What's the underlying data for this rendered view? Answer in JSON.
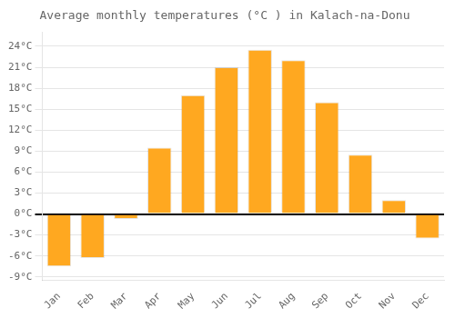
{
  "chart_data": {
    "type": "bar",
    "title": "Average monthly temperatures (°C ) in Kalach-na-Donu",
    "categories": [
      "Jan",
      "Feb",
      "Mar",
      "Apr",
      "May",
      "Jun",
      "Jul",
      "Aug",
      "Sep",
      "Oct",
      "Nov",
      "Dec"
    ],
    "values": [
      -7.5,
      -6.3,
      -0.7,
      9.5,
      17.0,
      21.0,
      23.5,
      22.0,
      16.0,
      8.5,
      2.0,
      -3.5
    ],
    "color": "#FFA820",
    "ylim": [
      -9.5,
      26.0
    ],
    "yticks": [
      {
        "value": -9,
        "label": "-9°C"
      },
      {
        "value": -6,
        "label": "-6°C"
      },
      {
        "value": -3,
        "label": "-3°C"
      },
      {
        "value": 0,
        "label": "0°C"
      },
      {
        "value": 3,
        "label": "3°C"
      },
      {
        "value": 6,
        "label": "6°C"
      },
      {
        "value": 9,
        "label": "9°C"
      },
      {
        "value": 12,
        "label": "12°C"
      },
      {
        "value": 15,
        "label": "15°C"
      },
      {
        "value": 18,
        "label": "18°C"
      },
      {
        "value": 21,
        "label": "21°C"
      },
      {
        "value": 24,
        "label": "24°C"
      }
    ],
    "grid": true
  }
}
